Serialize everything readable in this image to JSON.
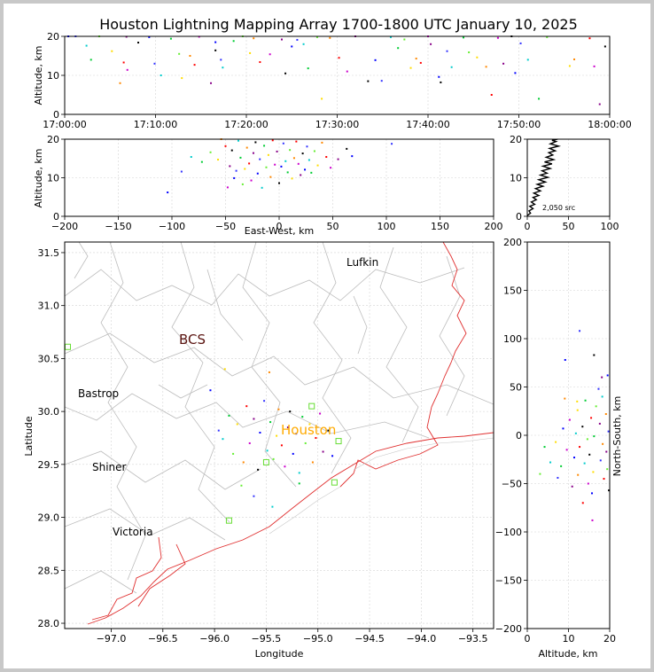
{
  "chart_data": [
    {
      "panel": "altitude-vs-time",
      "type": "scatter",
      "title": "Houston Lightning Mapping Array 1700-1800 UTC January 10, 2025",
      "xlabel": "",
      "ylabel": "Altitude, km",
      "xlim": [
        0,
        60
      ],
      "ylim": [
        0,
        20
      ],
      "x_ticks": [
        "17:00:00",
        "17:10:00",
        "17:20:00",
        "17:30:00",
        "17:40:00",
        "17:50:00",
        "18:00:00"
      ],
      "y_ticks": [
        "0",
        "10",
        "20"
      ],
      "grid": true,
      "x_unit": "minutes after 17:00:00 UTC",
      "points": [
        [
          0.4,
          20
        ],
        [
          1.2,
          20
        ],
        [
          2.4,
          17.6
        ],
        [
          2.9,
          14
        ],
        [
          3.8,
          20
        ],
        [
          5.2,
          16.2
        ],
        [
          6.1,
          8
        ],
        [
          6.5,
          13.3
        ],
        [
          6.9,
          11.4
        ],
        [
          6.8,
          19.9
        ],
        [
          8.1,
          18.4
        ],
        [
          9.3,
          19.8
        ],
        [
          9.9,
          13
        ],
        [
          10.6,
          10
        ],
        [
          11.7,
          19.4
        ],
        [
          12.6,
          15.5
        ],
        [
          12.9,
          9.3
        ],
        [
          13.8,
          15
        ],
        [
          14.3,
          12.7
        ],
        [
          14.8,
          19.9
        ],
        [
          16.1,
          8
        ],
        [
          16.6,
          16.4
        ],
        [
          16.6,
          18.5
        ],
        [
          17.2,
          14
        ],
        [
          17.4,
          12
        ],
        [
          18.6,
          18.8
        ],
        [
          19.6,
          20
        ],
        [
          20.4,
          15.7
        ],
        [
          20.8,
          19.5
        ],
        [
          21.5,
          13.4
        ],
        [
          22.6,
          15.4
        ],
        [
          23.9,
          19.2
        ],
        [
          24.3,
          10.5
        ],
        [
          25,
          17.4
        ],
        [
          25.6,
          19.1
        ],
        [
          26.3,
          18
        ],
        [
          26.8,
          11.8
        ],
        [
          27.8,
          19.8
        ],
        [
          28.3,
          4
        ],
        [
          29.2,
          19.6
        ],
        [
          30.2,
          14.5
        ],
        [
          31.1,
          11
        ],
        [
          32,
          20
        ],
        [
          33.4,
          8.5
        ],
        [
          34.2,
          13.9
        ],
        [
          34.9,
          8.6
        ],
        [
          35.9,
          19.8
        ],
        [
          36.7,
          17
        ],
        [
          37.4,
          19.2
        ],
        [
          38.1,
          11.9
        ],
        [
          38.7,
          14.3
        ],
        [
          39.2,
          13.2
        ],
        [
          40,
          20
        ],
        [
          40.3,
          18
        ],
        [
          41.4,
          8.2
        ],
        [
          41.2,
          9.6
        ],
        [
          42.1,
          16.2
        ],
        [
          42.6,
          12.1
        ],
        [
          43.9,
          19.7
        ],
        [
          44.5,
          15.9
        ],
        [
          45.4,
          14.6
        ],
        [
          46.4,
          12.2
        ],
        [
          47,
          5
        ],
        [
          47.7,
          19.6
        ],
        [
          48.3,
          13
        ],
        [
          49.2,
          20
        ],
        [
          49.6,
          10.6
        ],
        [
          50.2,
          18.2
        ],
        [
          51,
          14
        ],
        [
          52.2,
          4
        ],
        [
          53.1,
          19.8
        ],
        [
          55.6,
          12.4
        ],
        [
          56.1,
          14.1
        ],
        [
          57.8,
          19.5
        ],
        [
          58.3,
          12.3
        ],
        [
          58.9,
          2.6
        ],
        [
          59.5,
          17.4
        ]
      ]
    },
    {
      "panel": "altitude-vs-east-west",
      "type": "scatter",
      "xlabel": "East-West, km",
      "ylabel": "Altitude, km",
      "xlim": [
        -200,
        200
      ],
      "ylim": [
        0,
        20
      ],
      "x_ticks": [
        "−200",
        "−150",
        "−100",
        "−50",
        "0",
        "50",
        "100",
        "150",
        "200"
      ],
      "y_ticks": [
        "0",
        "10",
        "20"
      ],
      "grid": true,
      "points": [
        [
          -104,
          6.2
        ],
        [
          -91,
          11.6
        ],
        [
          -82,
          15.4
        ],
        [
          -72,
          14.1
        ],
        [
          -64,
          16.6
        ],
        [
          -57,
          14.7
        ],
        [
          -54,
          20
        ],
        [
          -50,
          18.2
        ],
        [
          -48,
          7.5
        ],
        [
          -46,
          13
        ],
        [
          -44,
          17.1
        ],
        [
          -42,
          9.9
        ],
        [
          -40,
          11.8
        ],
        [
          -38,
          19.6
        ],
        [
          -36,
          15.2
        ],
        [
          -34,
          8.3
        ],
        [
          -32,
          12.3
        ],
        [
          -30,
          17.8
        ],
        [
          -28,
          13.7
        ],
        [
          -26,
          9.3
        ],
        [
          -24,
          16.4
        ],
        [
          -22,
          19.2
        ],
        [
          -20,
          11.1
        ],
        [
          -18,
          14.8
        ],
        [
          -16,
          7.4
        ],
        [
          -14,
          18.3
        ],
        [
          -12,
          12.7
        ],
        [
          -10,
          15.9
        ],
        [
          -8,
          10.2
        ],
        [
          -6,
          19.7
        ],
        [
          -4,
          13.4
        ],
        [
          -2,
          16.8
        ],
        [
          0,
          8.6
        ],
        [
          2,
          12.9
        ],
        [
          4,
          18.9
        ],
        [
          6,
          14.3
        ],
        [
          8,
          11.4
        ],
        [
          10,
          17.2
        ],
        [
          12,
          9.8
        ],
        [
          14,
          15.1
        ],
        [
          16,
          19.4
        ],
        [
          18,
          13.6
        ],
        [
          20,
          10.7
        ],
        [
          22,
          16.3
        ],
        [
          24,
          12.1
        ],
        [
          26,
          18.1
        ],
        [
          28,
          14.6
        ],
        [
          30,
          11.3
        ],
        [
          33,
          16.9
        ],
        [
          36,
          13.2
        ],
        [
          40,
          19.1
        ],
        [
          44,
          15.4
        ],
        [
          48,
          12.6
        ],
        [
          55,
          14.8
        ],
        [
          63,
          17.5
        ],
        [
          68,
          15.6
        ],
        [
          105,
          18.8
        ]
      ]
    },
    {
      "panel": "altitude-histogram",
      "type": "line",
      "xlim": [
        0,
        100
      ],
      "ylim": [
        0,
        20
      ],
      "x_ticks": [
        "0",
        "50",
        "100"
      ],
      "y_ticks": [
        "0",
        "10",
        "20"
      ],
      "annotation": "2,050 src",
      "x": [
        0,
        4,
        2,
        7,
        3,
        9,
        5,
        11,
        7,
        14,
        8,
        16,
        10,
        19,
        12,
        22,
        14,
        25,
        16,
        24,
        18,
        28,
        19,
        30,
        21,
        32,
        23,
        31,
        26,
        34,
        27,
        38,
        28,
        35,
        30,
        37
      ],
      "y": [
        0.2,
        0.8,
        1.4,
        2,
        2.6,
        3.1,
        3.7,
        4.3,
        4.9,
        5.4,
        6,
        6.6,
        7.2,
        7.8,
        8.3,
        8.9,
        9.5,
        10.1,
        10.7,
        11.2,
        11.8,
        12.4,
        13,
        13.6,
        14.1,
        14.7,
        15.3,
        15.9,
        16.5,
        17,
        17.6,
        18.2,
        18.8,
        19.4,
        19.7,
        20
      ]
    },
    {
      "panel": "plan-view-map",
      "type": "scatter",
      "xlabel": "Longitude",
      "ylabel": "Latitude",
      "xlim": [
        -97.45,
        -93.3
      ],
      "ylim": [
        27.95,
        31.6
      ],
      "x_ticks": [
        "−97.0",
        "−96.5",
        "−96.0",
        "−95.5",
        "−95.0",
        "−94.5",
        "−94.0",
        "−93.5"
      ],
      "y_ticks": [
        "28.0",
        "28.5",
        "29.0",
        "29.5",
        "30.0",
        "30.5",
        "31.0",
        "31.5"
      ],
      "grid": true,
      "points": [
        [
          -96.04,
          30.2
        ],
        [
          -95.96,
          29.82
        ],
        [
          -95.92,
          29.74
        ],
        [
          -95.86,
          29.96
        ],
        [
          -95.82,
          29.6
        ],
        [
          -95.78,
          29.88
        ],
        [
          -95.72,
          29.52
        ],
        [
          -95.69,
          30.05
        ],
        [
          -95.66,
          29.7
        ],
        [
          -95.62,
          29.93
        ],
        [
          -95.58,
          29.45
        ],
        [
          -95.56,
          29.8
        ],
        [
          -95.52,
          30.1
        ],
        [
          -95.49,
          29.63
        ],
        [
          -95.46,
          29.9
        ],
        [
          -95.43,
          29.55
        ],
        [
          -95.4,
          29.77
        ],
        [
          -95.38,
          30.02
        ],
        [
          -95.35,
          29.68
        ],
        [
          -95.32,
          29.48
        ],
        [
          -95.29,
          29.85
        ],
        [
          -95.27,
          30.0
        ],
        [
          -95.24,
          29.6
        ],
        [
          -95.21,
          29.79
        ],
        [
          -95.18,
          29.42
        ],
        [
          -95.15,
          29.95
        ],
        [
          -95.12,
          29.7
        ],
        [
          -95.08,
          29.88
        ],
        [
          -95.05,
          29.52
        ],
        [
          -95.02,
          29.75
        ],
        [
          -94.98,
          29.98
        ],
        [
          -94.95,
          29.62
        ],
        [
          -94.9,
          29.82
        ],
        [
          -94.86,
          29.58
        ],
        [
          -95.62,
          29.2
        ],
        [
          -95.44,
          29.1
        ],
        [
          -95.18,
          29.32
        ],
        [
          -95.74,
          29.3
        ],
        [
          -95.9,
          30.4
        ],
        [
          -95.47,
          30.37
        ]
      ],
      "stations": [
        [
          -97.42,
          30.61
        ],
        [
          -95.06,
          30.05
        ],
        [
          -94.8,
          29.72
        ],
        [
          -94.84,
          29.33
        ],
        [
          -95.5,
          29.52
        ],
        [
          -95.86,
          28.97
        ]
      ],
      "places": [
        "Lufkin",
        "BCS",
        "Bastrop",
        "Houston",
        "Shiner",
        "Victoria"
      ]
    },
    {
      "panel": "north-south-vs-altitude",
      "type": "scatter",
      "xlabel": "Altitude, km",
      "ylabel": "North-South, km",
      "xlim": [
        0,
        20
      ],
      "ylim": [
        -200,
        200
      ],
      "x_ticks": [
        "0",
        "10",
        "20"
      ],
      "y_ticks": [
        "−200",
        "−150",
        "−100",
        "−50",
        "0",
        "50",
        "100",
        "150",
        "200"
      ],
      "grid": true,
      "points": [
        [
          19.5,
          62
        ],
        [
          17.3,
          48
        ],
        [
          18.2,
          40
        ],
        [
          14.1,
          36
        ],
        [
          16.7,
          30
        ],
        [
          12.2,
          26
        ],
        [
          19.1,
          22
        ],
        [
          15.5,
          18
        ],
        [
          10.3,
          16
        ],
        [
          17.6,
          12
        ],
        [
          13.4,
          9
        ],
        [
          8.7,
          7
        ],
        [
          19.7,
          4
        ],
        [
          11.8,
          2
        ],
        [
          16.2,
          -1
        ],
        [
          14.6,
          -4
        ],
        [
          6.9,
          -7
        ],
        [
          18.3,
          -9
        ],
        [
          12.7,
          -12
        ],
        [
          9.6,
          -15
        ],
        [
          19.2,
          -17
        ],
        [
          15.1,
          -20
        ],
        [
          11.4,
          -23
        ],
        [
          17.8,
          -26
        ],
        [
          13.9,
          -29
        ],
        [
          8.2,
          -32
        ],
        [
          19.4,
          -35
        ],
        [
          16,
          -38
        ],
        [
          12.3,
          -41
        ],
        [
          18.6,
          -45
        ],
        [
          14.8,
          -50
        ],
        [
          10.9,
          -53
        ],
        [
          19.8,
          -57
        ],
        [
          15.7,
          -60
        ],
        [
          7.4,
          -44
        ],
        [
          5.6,
          -28
        ],
        [
          4.2,
          -12
        ],
        [
          3.1,
          -40
        ],
        [
          12.1,
          35
        ],
        [
          9.1,
          38
        ],
        [
          13.5,
          -70
        ],
        [
          15.8,
          -88
        ],
        [
          18.1,
          60
        ],
        [
          16.2,
          83
        ],
        [
          9.2,
          78
        ],
        [
          12.7,
          108
        ]
      ]
    }
  ],
  "figure": {
    "title": "Houston Lightning Mapping Array 1700-1800 UTC January 10, 2025",
    "colors": {
      "frame": "#c8c8c8",
      "grid": "#d4d4d4",
      "county_lines": "#bdbdbd",
      "coast": "#e03030",
      "stations": "#66dd33",
      "houston_label": "#ffaa00",
      "bcs_label": "#5a1410",
      "histogram": "#000000"
    },
    "point_palette": [
      "#0000ff",
      "#3333ff",
      "#00cccc",
      "#00cc33",
      "#66ee33",
      "#ffdd00",
      "#ff8800",
      "#ff0000",
      "#cc00cc",
      "#880088",
      "#000000"
    ]
  },
  "labels": {
    "title": "Houston Lightning Mapping Array 1700-1800 UTC January 10, 2025",
    "time_ylabel": "Altitude, km",
    "ew_ylabel": "Altitude, km",
    "ew_xlabel": "East-West, km",
    "map_xlabel": "Longitude",
    "map_ylabel": "Latitude",
    "ns_xlabel": "Altitude, km",
    "ns_ylabel": "North-South, km",
    "hist_note": "2,050 src"
  },
  "ticks": {
    "time_x": [
      "17:00:00",
      "17:10:00",
      "17:20:00",
      "17:30:00",
      "17:40:00",
      "17:50:00",
      "18:00:00"
    ],
    "time_y": [
      "0",
      "10",
      "20"
    ],
    "ew_x": [
      "−200",
      "−150",
      "−100",
      "−50",
      "0",
      "50",
      "100",
      "150",
      "200"
    ],
    "ew_y": [
      "0",
      "10",
      "20"
    ],
    "hist_x": [
      "0",
      "50",
      "100"
    ],
    "hist_y": [
      "0",
      "10",
      "20"
    ],
    "map_x": [
      "−97.0",
      "−96.5",
      "−96.0",
      "−95.5",
      "−95.0",
      "−94.5",
      "−94.0",
      "−93.5"
    ],
    "map_y": [
      "28.0",
      "28.5",
      "29.0",
      "29.5",
      "30.0",
      "30.5",
      "31.0",
      "31.5"
    ],
    "ns_x": [
      "0",
      "10",
      "20"
    ],
    "ns_y": [
      "−200",
      "−150",
      "−100",
      "−50",
      "0",
      "50",
      "100",
      "150",
      "200"
    ]
  },
  "places": {
    "lufkin": "Lufkin",
    "bcs": "BCS",
    "bastrop": "Bastrop",
    "houston": "Houston",
    "shiner": "Shiner",
    "victoria": "Victoria"
  }
}
